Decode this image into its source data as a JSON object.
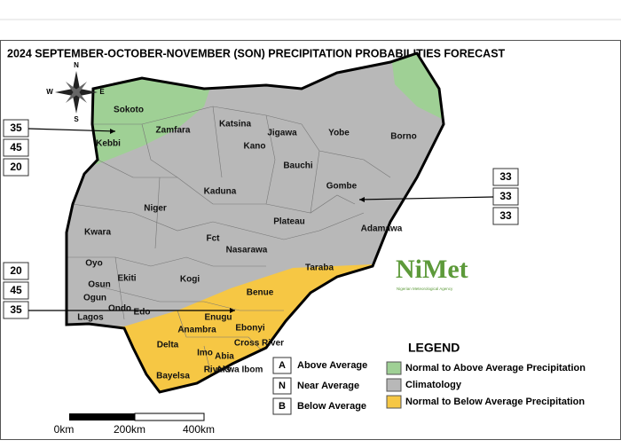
{
  "title": "2024 SEPTEMBER-OCTOBER-NOVEMBER (SON) PRECIPITATION PROBABILITIES FORECAST",
  "compass": [
    "N",
    "E",
    "S",
    "W"
  ],
  "states": [
    "Sokoto",
    "Zamfara",
    "Kebbi",
    "Katsina",
    "Jigawa",
    "Kano",
    "Yobe",
    "Borno",
    "Bauchi",
    "Gombe",
    "Kaduna",
    "Niger",
    "Plateau",
    "Adamawa",
    "Kwara",
    "Fct",
    "Nasarawa",
    "Taraba",
    "Oyo",
    "Ekiti",
    "Osun",
    "Kogi",
    "Ogun",
    "Benue",
    "Ondo",
    "Edo",
    "Lagos",
    "Enugu",
    "Ebonyi",
    "Anambra",
    "Delta",
    "Cross River",
    "Imo",
    "Abia",
    "Rivers",
    "Akwa Ibom",
    "Bayelsa"
  ],
  "probabilities": [
    [
      35,
      45,
      20
    ],
    [
      33,
      33,
      33
    ],
    [
      20,
      45,
      35
    ]
  ],
  "legend": {
    "title": "LEGEND",
    "items": [
      {
        "label": "Normal to Above Average Precipitation",
        "color": "#9fd095"
      },
      {
        "label": "Climatology",
        "color": "#b8b8b8"
      },
      {
        "label": "Normal to Below Average Precipitation",
        "color": "#f6c744"
      }
    ]
  },
  "key": [
    {
      "letter": "A",
      "label": "Above Average"
    },
    {
      "letter": "N",
      "label": "Near Average"
    },
    {
      "letter": "B",
      "label": "Below Average"
    }
  ],
  "scale": [
    "0km",
    "200km",
    "400km"
  ],
  "logo": {
    "name": "NiMet",
    "subtitle": "Nigerian Meteorological Agency"
  }
}
